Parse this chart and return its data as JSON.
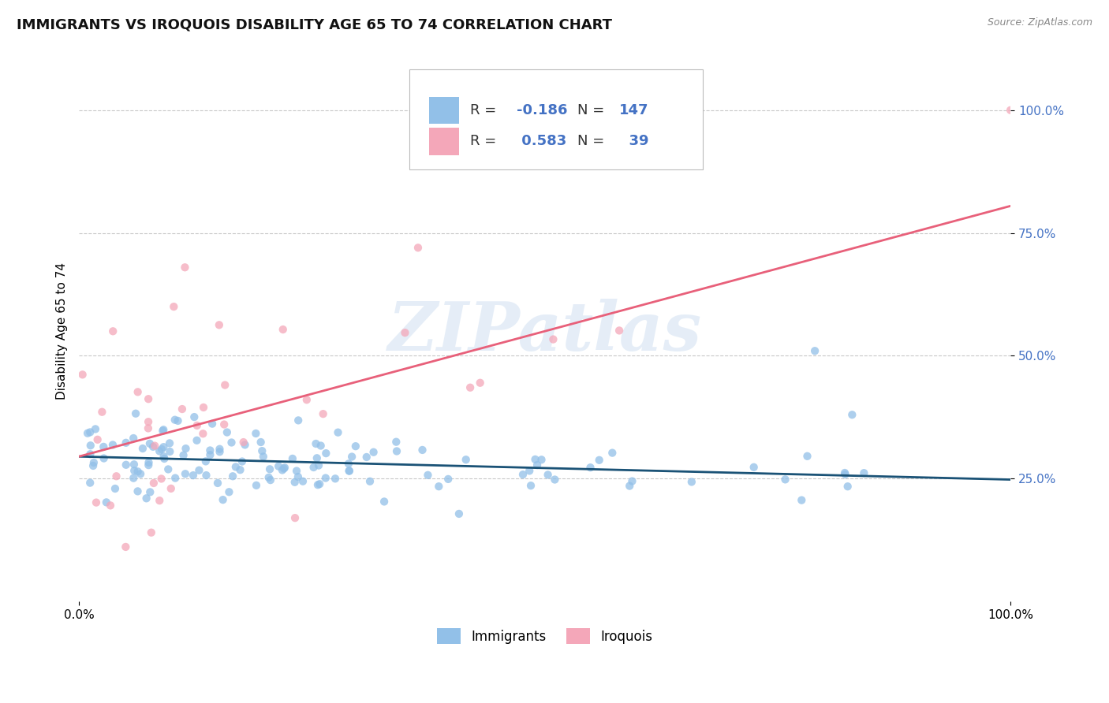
{
  "title": "IMMIGRANTS VS IROQUOIS DISABILITY AGE 65 TO 74 CORRELATION CHART",
  "source_text": "Source: ZipAtlas.com",
  "ylabel": "Disability Age 65 to 74",
  "xlim": [
    0.0,
    1.0
  ],
  "ylim": [
    0.0,
    1.1
  ],
  "ytick_labels": [
    "25.0%",
    "50.0%",
    "75.0%",
    "100.0%"
  ],
  "ytick_positions": [
    0.25,
    0.5,
    0.75,
    1.0
  ],
  "xtick_labels": [
    "0.0%",
    "100.0%"
  ],
  "xtick_positions": [
    0.0,
    1.0
  ],
  "legend_labels": [
    "Immigrants",
    "Iroquois"
  ],
  "immigrants_color": "#92c0e8",
  "iroquois_color": "#f4a7b9",
  "immigrants_line_color": "#1a5276",
  "iroquois_line_color": "#e8607a",
  "R_immigrants": -0.186,
  "N_immigrants": 147,
  "R_iroquois": 0.583,
  "N_iroquois": 39,
  "watermark": "ZIPatlas",
  "background_color": "#ffffff",
  "grid_color": "#c8c8c8",
  "stat_color": "#4472c4",
  "title_fontsize": 13,
  "axis_label_fontsize": 11,
  "tick_fontsize": 11,
  "immigrants_line_y0": 0.295,
  "immigrants_line_y1": 0.248,
  "iroquois_line_y0": 0.295,
  "iroquois_line_y1": 0.805
}
